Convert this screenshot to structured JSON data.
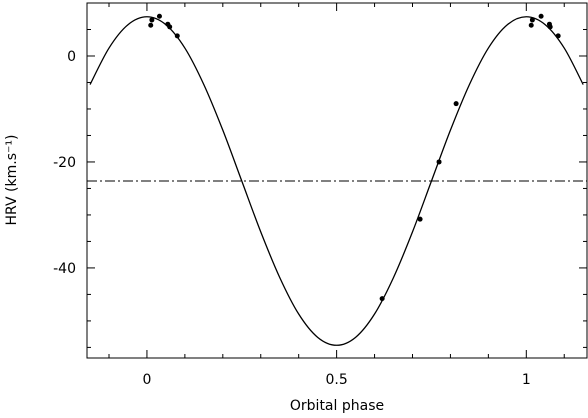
{
  "chart_data": {
    "type": "scatter",
    "xlabel": "Orbital phase",
    "ylabel": "HRV (km.s⁻¹)",
    "xlim": [
      -0.158,
      1.16
    ],
    "ylim": [
      -57,
      10
    ],
    "xticks": [
      0,
      0.5,
      1
    ],
    "yticks": [
      0,
      -20,
      -40
    ],
    "x_minor_ticks": [
      -0.1,
      0.1,
      0.2,
      0.3,
      0.4,
      0.6,
      0.7,
      0.8,
      0.9,
      1.1
    ],
    "y_minor_ticks": [
      5,
      -5,
      -10,
      -15,
      -25,
      -30,
      -35,
      -45,
      -50,
      -55
    ],
    "hline": -23.6,
    "color": "#000000",
    "points": {
      "x": [
        0.01,
        0.013,
        0.033,
        0.055,
        0.06,
        0.08,
        0.62,
        0.72,
        0.77,
        0.815,
        1.013,
        1.016,
        1.039,
        1.061,
        1.063,
        1.084
      ],
      "values": [
        5.8,
        6.8,
        7.5,
        6.0,
        5.5,
        3.8,
        -45.8,
        -30.8,
        -20.0,
        -9.0,
        5.8,
        6.8,
        7.5,
        6.0,
        5.5,
        3.8
      ]
    },
    "curve": {
      "x": [
        -0.15,
        -0.1,
        -0.05,
        0,
        0.05,
        0.1,
        0.15,
        0.2,
        0.25,
        0.3,
        0.35,
        0.4,
        0.45,
        0.5,
        0.55,
        0.6,
        0.65,
        0.7,
        0.75,
        0.8,
        0.85,
        0.9,
        0.95,
        1.0,
        1.05,
        1.1,
        1.15
      ],
      "values": [
        -5.4,
        1.5,
        5.9,
        7.4,
        5.9,
        1.5,
        -5.4,
        -14.0,
        -23.6,
        -33.2,
        -41.8,
        -48.7,
        -53.1,
        -54.6,
        -53.1,
        -48.7,
        -41.8,
        -33.2,
        -23.6,
        -14.0,
        -5.4,
        1.5,
        5.9,
        7.4,
        5.9,
        1.5,
        -5.4
      ]
    }
  }
}
